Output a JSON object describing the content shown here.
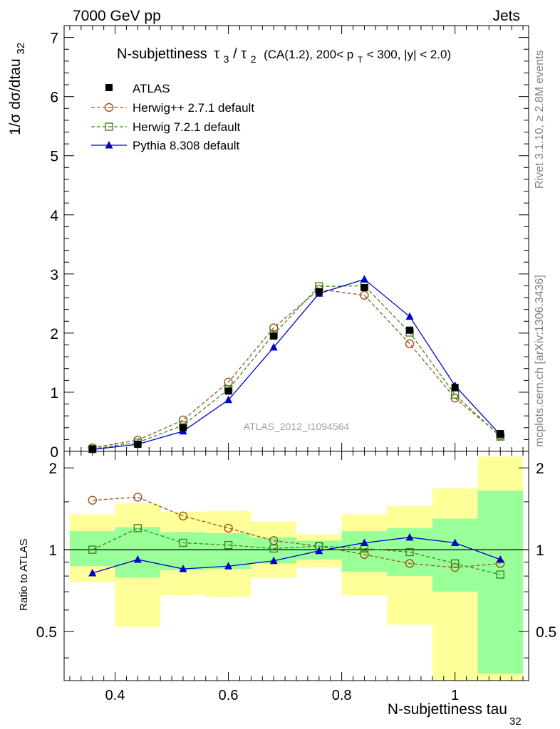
{
  "header": {
    "left": "7000 GeV pp",
    "right": "Jets"
  },
  "side_labels": {
    "rivet": "Rivet 3.1.10, ≥ 2.8M events",
    "mcplots": "mcplots.cern.ch [arXiv:1306.3436]"
  },
  "watermark": "ATLAS_2012_I1094564",
  "chart_data": {
    "type": "line",
    "title": {
      "main": "N-subjettiness",
      "tau3": "τ",
      "sub3": "3",
      "slash": "/",
      "tau2": "τ",
      "sub2": "2",
      "cuts_a": "(CA(1.2), 200< p",
      "cuts_sub": "T",
      "cuts_b": " < 300, |y| < 2.0)"
    },
    "xlabel": {
      "main": "N-subjettiness tau",
      "sub": "32"
    },
    "ylabel": {
      "main": "1/σ dσ/dtau",
      "sub": "32"
    },
    "ratio_ylabel": "Ratio to ATLAS",
    "xlim": [
      0.31,
      1.13
    ],
    "ylim": [
      0,
      7.2
    ],
    "ratio_ylim": [
      0.33,
      2.3
    ],
    "x_ticks": [
      0.4,
      0.6,
      0.8,
      1.0
    ],
    "x_tick_labels": [
      "0.4",
      "0.6",
      "0.8",
      "1"
    ],
    "y_ticks": [
      0,
      1,
      2,
      3,
      4,
      5,
      6,
      7
    ],
    "y_tick_labels": [
      "0",
      "1",
      "2",
      "3",
      "4",
      "5",
      "6",
      "7"
    ],
    "ratio_y_ticks": [
      0.5,
      1,
      2
    ],
    "ratio_y_tick_labels": [
      "0.5",
      "1",
      "2"
    ],
    "bin_edges": [
      0.32,
      0.4,
      0.48,
      0.56,
      0.64,
      0.72,
      0.8,
      0.88,
      0.96,
      1.04,
      1.12
    ],
    "x": [
      0.36,
      0.44,
      0.52,
      0.6,
      0.68,
      0.76,
      0.84,
      0.92,
      1.0,
      1.08
    ],
    "data": {
      "name": "ATLAS",
      "values": [
        0.04,
        0.12,
        0.4,
        1.02,
        1.95,
        2.7,
        2.77,
        2.05,
        1.08,
        0.3
      ]
    },
    "series": [
      {
        "name": "Herwig++ 2.7.1 default",
        "color": "#a0521a",
        "marker": "circle",
        "dash": true,
        "values": [
          0.06,
          0.19,
          0.53,
          1.17,
          2.09,
          2.74,
          2.64,
          1.82,
          0.9,
          0.27
        ],
        "ratio": [
          1.52,
          1.56,
          1.33,
          1.2,
          1.08,
          1.03,
          0.96,
          0.89,
          0.86,
          0.89
        ]
      },
      {
        "name": "Herwig 7.2.1 default",
        "color": "#3a8a1a",
        "marker": "square",
        "dash": true,
        "values": [
          0.04,
          0.15,
          0.44,
          1.05,
          1.98,
          2.79,
          2.8,
          2.01,
          0.96,
          0.25
        ],
        "ratio": [
          1.0,
          1.2,
          1.06,
          1.04,
          1.01,
          1.03,
          1.01,
          0.98,
          0.89,
          0.81
        ]
      },
      {
        "name": "Pythia 8.308 default",
        "color": "#0000cc",
        "marker": "triangle",
        "dash": false,
        "values": [
          0.03,
          0.12,
          0.34,
          0.87,
          1.76,
          2.67,
          2.91,
          2.28,
          1.11,
          0.28
        ],
        "ratio": [
          0.82,
          0.92,
          0.85,
          0.87,
          0.91,
          0.99,
          1.06,
          1.11,
          1.06,
          0.92
        ]
      }
    ],
    "ratio_bands": {
      "inner": [
        [
          0.87,
          1.17
        ],
        [
          0.79,
          1.21
        ],
        [
          0.84,
          1.16
        ],
        [
          0.85,
          1.15
        ],
        [
          0.89,
          1.11
        ],
        [
          0.92,
          1.08
        ],
        [
          0.83,
          1.17
        ],
        [
          0.8,
          1.2
        ],
        [
          0.7,
          1.3
        ],
        [
          0.35,
          1.65
        ]
      ],
      "outer": [
        [
          0.76,
          1.35
        ],
        [
          0.52,
          1.48
        ],
        [
          0.68,
          1.38
        ],
        [
          0.67,
          1.39
        ],
        [
          0.79,
          1.27
        ],
        [
          0.86,
          1.14
        ],
        [
          0.68,
          1.35
        ],
        [
          0.53,
          1.45
        ],
        [
          0.3,
          1.68
        ],
        [
          0.3,
          2.2
        ]
      ]
    },
    "legend_position": "top-left"
  }
}
